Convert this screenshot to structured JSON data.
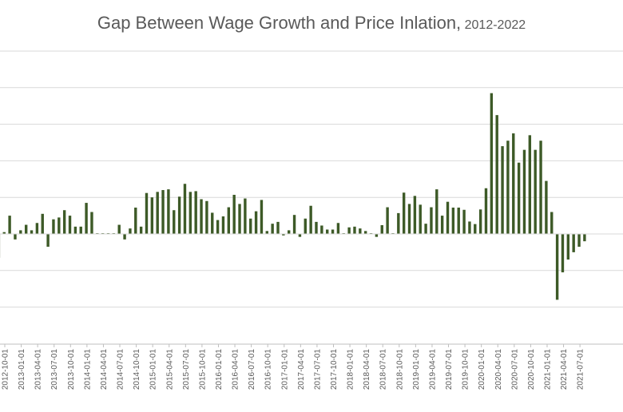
{
  "chart_data": {
    "type": "bar",
    "title": "Gap Between Wage Growth and Price Inlation,",
    "subtitle": "2012-2022",
    "xlabel": "",
    "ylabel": "",
    "ylim": [
      -3.0,
      5.0
    ],
    "grid": true,
    "gridlines_y": [
      -2,
      -1,
      0,
      1,
      2,
      3,
      4,
      5
    ],
    "legend": "none",
    "colors": {
      "bar": "#3d5a27",
      "grid": "#d9d9d9",
      "text": "#595959",
      "axis": "#bfbfbf"
    },
    "tick_labels": [
      "2012-10-01",
      "2013-01-01",
      "2013-04-01",
      "2013-07-01",
      "2013-10-01",
      "2014-01-01",
      "2014-04-01",
      "2014-07-01",
      "2014-10-01",
      "2015-01-01",
      "2015-04-01",
      "2015-07-01",
      "2015-10-01",
      "2016-01-01",
      "2016-04-01",
      "2016-07-01",
      "2016-10-01",
      "2017-01-01",
      "2017-04-01",
      "2017-07-01",
      "2017-10-01",
      "2018-01-01",
      "2018-04-01",
      "2018-07-01",
      "2018-10-01",
      "2019-01-01",
      "2019-04-01",
      "2019-07-01",
      "2019-10-01",
      "2020-01-01",
      "2020-04-01",
      "2020-07-01",
      "2020-10-01",
      "2021-01-01",
      "2021-04-01",
      "2021-07-01"
    ],
    "categories": [
      "2012-09",
      "2012-10",
      "2012-11",
      "2012-12",
      "2013-01",
      "2013-02",
      "2013-03",
      "2013-04",
      "2013-05",
      "2013-06",
      "2013-07",
      "2013-08",
      "2013-09",
      "2013-10",
      "2013-11",
      "2013-12",
      "2014-01",
      "2014-02",
      "2014-03",
      "2014-04",
      "2014-05",
      "2014-06",
      "2014-07",
      "2014-08",
      "2014-09",
      "2014-10",
      "2014-11",
      "2014-12",
      "2015-01",
      "2015-02",
      "2015-03",
      "2015-04",
      "2015-05",
      "2015-06",
      "2015-07",
      "2015-08",
      "2015-09",
      "2015-10",
      "2015-11",
      "2015-12",
      "2016-01",
      "2016-02",
      "2016-03",
      "2016-04",
      "2016-05",
      "2016-06",
      "2016-07",
      "2016-08",
      "2016-09",
      "2016-10",
      "2016-11",
      "2016-12",
      "2017-01",
      "2017-02",
      "2017-03",
      "2017-04",
      "2017-05",
      "2017-06",
      "2017-07",
      "2017-08",
      "2017-09",
      "2017-10",
      "2017-11",
      "2017-12",
      "2018-01",
      "2018-02",
      "2018-03",
      "2018-04",
      "2018-05",
      "2018-06",
      "2018-07",
      "2018-08",
      "2018-09",
      "2018-10",
      "2018-11",
      "2018-12",
      "2019-01",
      "2019-02",
      "2019-03",
      "2019-04",
      "2019-05",
      "2019-06",
      "2019-07",
      "2019-08",
      "2019-09",
      "2019-10",
      "2019-11",
      "2019-12",
      "2020-01",
      "2020-02",
      "2020-03",
      "2020-04",
      "2020-05",
      "2020-06",
      "2020-07",
      "2020-08",
      "2020-09",
      "2020-10",
      "2020-11",
      "2020-12",
      "2021-01",
      "2021-02",
      "2021-03",
      "2021-04",
      "2021-05",
      "2021-06",
      "2021-07",
      "2021-08"
    ],
    "values": [
      -0.65,
      0.05,
      0.5,
      -0.15,
      0.1,
      0.25,
      0.1,
      0.3,
      0.55,
      -0.35,
      0.4,
      0.45,
      0.65,
      0.5,
      0.2,
      0.2,
      0.85,
      0.6,
      0.02,
      0.02,
      0.02,
      0.02,
      0.25,
      -0.15,
      0.15,
      0.72,
      0.2,
      1.12,
      1.0,
      1.15,
      1.2,
      1.22,
      0.65,
      1.02,
      1.37,
      1.15,
      1.17,
      0.95,
      0.9,
      0.58,
      0.38,
      0.48,
      0.73,
      1.07,
      0.82,
      0.97,
      0.42,
      0.62,
      0.93,
      0.08,
      0.28,
      0.33,
      -0.04,
      0.1,
      0.52,
      -0.08,
      0.42,
      0.77,
      0.33,
      0.23,
      0.12,
      0.12,
      0.3,
      0.02,
      0.18,
      0.2,
      0.15,
      0.08,
      0.02,
      -0.08,
      0.24,
      0.73,
      0.02,
      0.57,
      1.13,
      0.82,
      1.04,
      0.8,
      0.28,
      0.73,
      1.22,
      0.5,
      0.88,
      0.72,
      0.72,
      0.66,
      0.34,
      0.27,
      0.67,
      1.25,
      3.85,
      3.25,
      2.4,
      2.55,
      2.75,
      1.95,
      2.3,
      2.7,
      2.3,
      2.55,
      1.45,
      0.6,
      -1.8,
      -1.05,
      -0.7,
      -0.5,
      -0.35,
      -0.2
    ]
  }
}
